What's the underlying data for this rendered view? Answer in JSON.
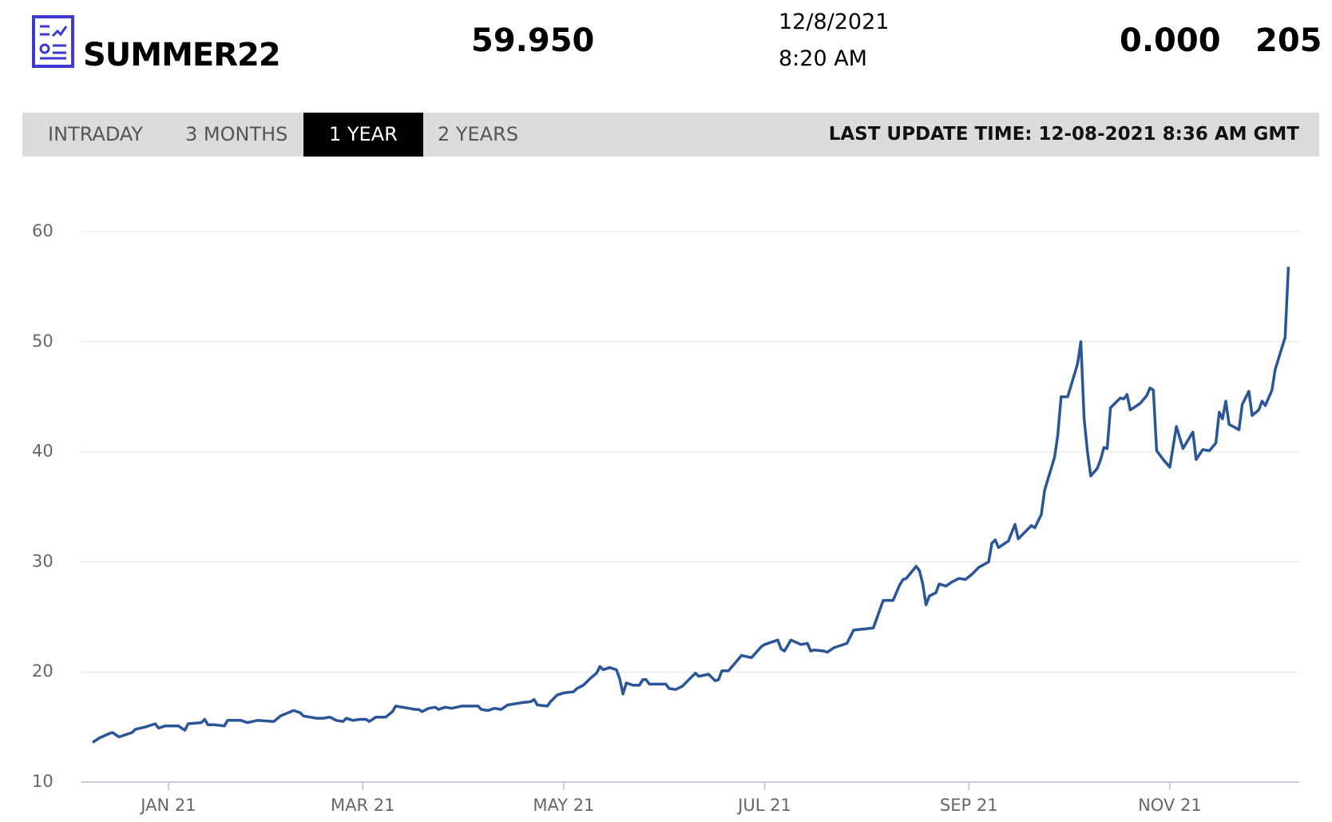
{
  "header": {
    "title": "SUMMER22",
    "price": "59.950",
    "date": "12/8/2021",
    "time": "8:20 AM",
    "change": "0.000",
    "volume": "205"
  },
  "tabs": {
    "items": [
      "INTRADAY",
      "3 MONTHS",
      "1 YEAR",
      "2 YEARS"
    ],
    "active": 2,
    "last_update": "LAST UPDATE TIME: 12-08-2021 8:36 AM GMT"
  },
  "chart_data": {
    "type": "line",
    "color": "#2a5597",
    "grid": true,
    "x": [
      -23,
      -21,
      -18,
      -17,
      -15,
      -13,
      -11,
      -10,
      -7,
      -4,
      -3,
      -1,
      3,
      5,
      6,
      10,
      11,
      12,
      14,
      17,
      18,
      22,
      24,
      27,
      32,
      34,
      38,
      40,
      41,
      45,
      47,
      49,
      51,
      53,
      54,
      56,
      58,
      60,
      61,
      63,
      66,
      68,
      69,
      71,
      73,
      75,
      76,
      77,
      79,
      81,
      82,
      84,
      86,
      89,
      94,
      95,
      97,
      99,
      101,
      103,
      107,
      110,
      111,
      112,
      115,
      116,
      118,
      120,
      123,
      124,
      126,
      128,
      130,
      131,
      132,
      134,
      136,
      137,
      138,
      139,
      141,
      143,
      144,
      145,
      146,
      148,
      151,
      152,
      154,
      156,
      158,
      160,
      161,
      164,
      166,
      167,
      168,
      170,
      172,
      174,
      177,
      180,
      181,
      185,
      186,
      187,
      189,
      192,
      194,
      195,
      196,
      199,
      200,
      202,
      206,
      208,
      211,
      214,
      217,
      220,
      222,
      223,
      224,
      227,
      228,
      229,
      230,
      231,
      233,
      234,
      236,
      238,
      240,
      242,
      244,
      246,
      249,
      250,
      251,
      252,
      255,
      257,
      258,
      260,
      262,
      263,
      265,
      266,
      268,
      269,
      270,
      271,
      273,
      276,
      277,
      278,
      279,
      280,
      282,
      283,
      284,
      285,
      286,
      289,
      290,
      291,
      292,
      295,
      297,
      298,
      299,
      300,
      302,
      304,
      306,
      308,
      311,
      312,
      314,
      316,
      318,
      319,
      320,
      321,
      322,
      325,
      326,
      328,
      329,
      331,
      332,
      333,
      335,
      336,
      339,
      340
    ],
    "values": [
      13.6,
      14.0,
      14.4,
      14.5,
      14.1,
      14.3,
      14.5,
      14.8,
      15.0,
      15.3,
      14.9,
      15.1,
      15.1,
      14.7,
      15.3,
      15.4,
      15.7,
      15.2,
      15.2,
      15.1,
      15.6,
      15.6,
      15.4,
      15.6,
      15.5,
      16.0,
      16.5,
      16.3,
      16.0,
      15.8,
      15.8,
      15.9,
      15.6,
      15.5,
      15.8,
      15.6,
      15.7,
      15.7,
      15.5,
      15.9,
      15.9,
      16.4,
      16.9,
      16.8,
      16.7,
      16.6,
      16.6,
      16.4,
      16.7,
      16.8,
      16.6,
      16.8,
      16.7,
      16.9,
      16.9,
      16.6,
      16.5,
      16.7,
      16.6,
      17.0,
      17.2,
      17.3,
      17.5,
      17.0,
      16.9,
      17.3,
      17.9,
      18.1,
      18.2,
      18.5,
      18.8,
      19.4,
      19.9,
      20.5,
      20.2,
      20.4,
      20.2,
      19.4,
      18.0,
      19.0,
      18.8,
      18.8,
      19.3,
      19.3,
      18.9,
      18.9,
      18.9,
      18.5,
      18.4,
      18.7,
      19.3,
      19.9,
      19.6,
      19.8,
      19.2,
      19.3,
      20.1,
      20.1,
      20.8,
      21.5,
      21.3,
      22.3,
      22.5,
      22.9,
      22.1,
      21.9,
      22.9,
      22.5,
      22.6,
      21.9,
      22.0,
      21.9,
      21.8,
      22.2,
      22.6,
      23.8,
      23.9,
      24.0,
      26.5,
      26.5,
      27.9,
      28.4,
      28.5,
      29.6,
      29.2,
      28.0,
      26.1,
      26.9,
      27.2,
      28.0,
      27.8,
      28.2,
      28.5,
      28.4,
      28.9,
      29.5,
      30.0,
      31.7,
      32.0,
      31.3,
      31.9,
      33.4,
      32.1,
      32.7,
      33.3,
      33.1,
      34.3,
      36.5,
      38.5,
      39.5,
      41.5,
      45.0,
      45.0,
      48.0,
      50.0,
      43.0,
      40.0,
      37.8,
      38.5,
      39.3,
      40.4,
      40.3,
      44.0,
      44.9,
      44.8,
      45.2,
      43.8,
      44.4,
      45.1,
      45.8,
      45.6,
      40.1,
      39.3,
      38.6,
      42.3,
      40.3,
      41.8,
      39.3,
      40.2,
      40.1,
      40.8,
      43.6,
      43.0,
      44.6,
      42.5,
      42.0,
      44.3,
      45.5,
      43.3,
      43.8,
      44.6,
      44.2,
      45.6,
      47.5,
      50.4,
      56.8
    ],
    "xlim": [
      -26.4,
      343.3
    ],
    "xticks": [
      {
        "value": 0,
        "label": "JAN 21"
      },
      {
        "value": 59,
        "label": "MAR 21"
      },
      {
        "value": 120,
        "label": "MAY 21"
      },
      {
        "value": 181,
        "label": "JUL 21"
      },
      {
        "value": 243,
        "label": "SEP 21"
      },
      {
        "value": 304,
        "label": "NOV 21"
      }
    ],
    "ylim": [
      10,
      60
    ],
    "yticks": [
      10,
      20,
      30,
      40,
      50,
      60
    ]
  }
}
